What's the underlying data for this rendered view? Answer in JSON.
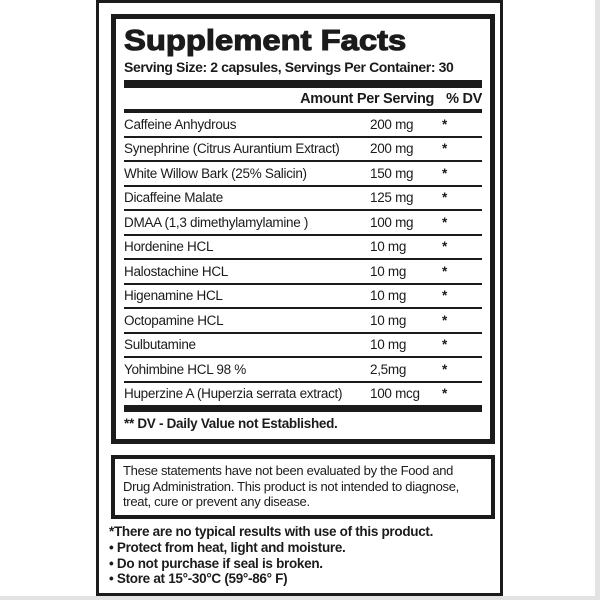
{
  "colors": {
    "ink": "#1b1b1b",
    "paper": "#ffffff"
  },
  "panel": {
    "title": "Supplement Facts",
    "serving_line": "Serving Size: 2 capsules, Servings Per Container: 30",
    "header": {
      "amount_label": "Amount Per Serving",
      "dv_label": "% DV"
    },
    "rows": [
      {
        "name": "Caffeine Anhydrous",
        "amount": "200 mg",
        "dv": "*"
      },
      {
        "name": "Synephrine (Citrus Aurantium Extract)",
        "amount": "200 mg",
        "dv": "*"
      },
      {
        "name": "White Willow Bark (25% Salicin)",
        "amount": "150 mg",
        "dv": "*"
      },
      {
        "name": "Dicaffeine Malate",
        "amount": "125 mg",
        "dv": "*"
      },
      {
        "name": "DMAA (1,3 dimethylamylamine )",
        "amount": "100 mg",
        "dv": "*"
      },
      {
        "name": "Hordenine HCL",
        "amount": "10 mg",
        "dv": "*"
      },
      {
        "name": "Halostachine HCL",
        "amount": "10 mg",
        "dv": "*"
      },
      {
        "name": "Higenamine HCL",
        "amount": "10 mg",
        "dv": "*"
      },
      {
        "name": "Octopamine HCL",
        "amount": "10 mg",
        "dv": "*"
      },
      {
        "name": "Sulbutamine",
        "amount": "10 mg",
        "dv": "*"
      },
      {
        "name": "Yohimbine  HCL 98 %",
        "amount": "2,5mg",
        "dv": "*"
      },
      {
        "name": "Huperzine A (Huperzia serrata extract)",
        "amount": "100 mcg",
        "dv": "*"
      }
    ],
    "footnote": "** DV -  Daily Value not Established."
  },
  "disclaimer": {
    "text": "These statements have not been evaluated by the Food and Drug Administration. This product is not intended to diagnose, treat, cure or prevent any disease."
  },
  "notes": [
    "*There are no typical results with use of this product.",
    "• Protect from heat, light and moisture.",
    "• Do not purchase if seal is broken.",
    "• Store at 15°-30°C (59°-86° F)"
  ]
}
